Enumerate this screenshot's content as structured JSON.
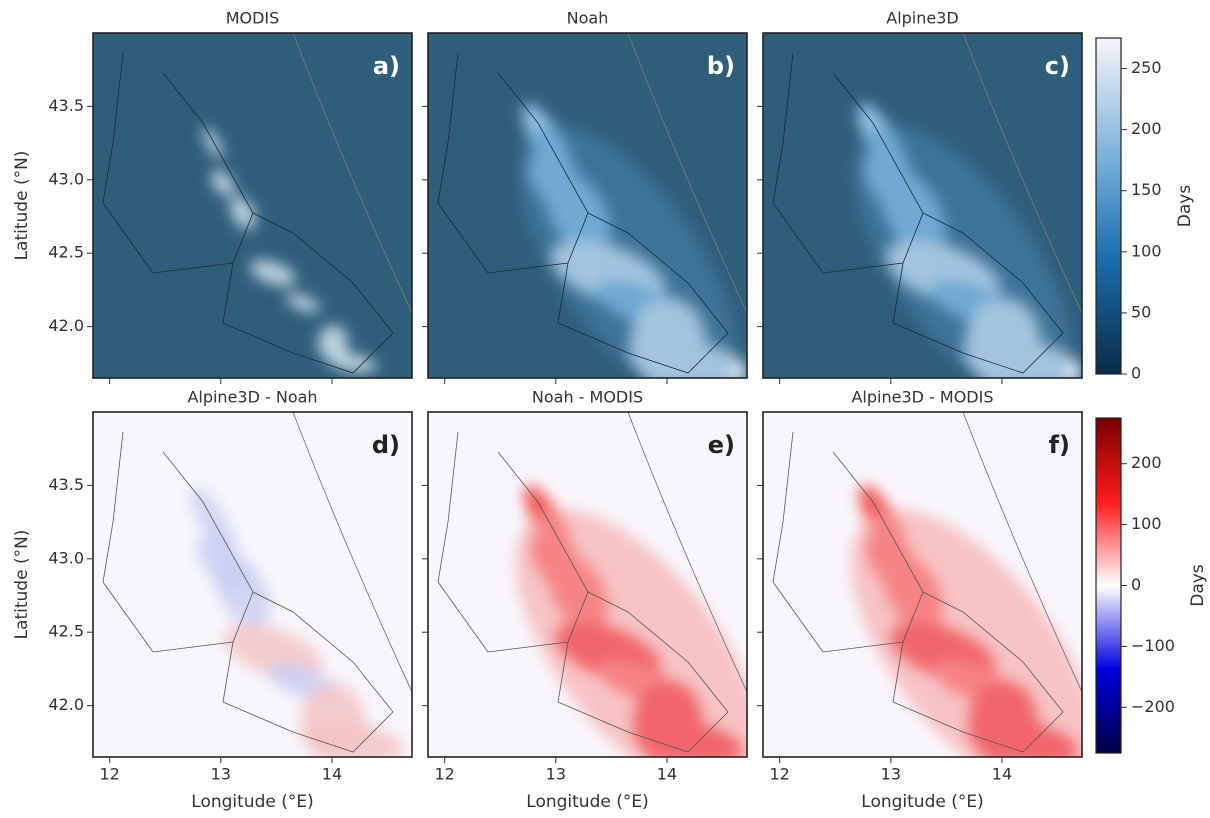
{
  "panels": [
    {
      "title": "MODIS",
      "label": "a)"
    },
    {
      "title": "Noah",
      "label": "b)"
    },
    {
      "title": "Alpine3D",
      "label": "c)"
    },
    {
      "title": "Alpine3D - Noah",
      "label": "d)"
    },
    {
      "title": "Noah - MODIS",
      "label": "e)"
    },
    {
      "title": "Alpine3D - MODIS",
      "label": "f)"
    }
  ],
  "xlabel": "Longitude (°E)",
  "ylabel": "Latitude (°N)",
  "xlim": [
    11.85,
    14.72
  ],
  "ylim": [
    41.65,
    44.0
  ],
  "xticks": [
    12,
    13,
    14
  ],
  "yticks": [
    {
      "value": 42,
      "label": "42.0"
    },
    42.5,
    {
      "value": 43,
      "label": "43.0"
    },
    43.5
  ],
  "colorbars": [
    {
      "label": "Days",
      "lim": [
        0,
        275
      ],
      "ticks": [
        0,
        50,
        100,
        150,
        200,
        250
      ]
    },
    {
      "label": "Days",
      "lim": [
        -275,
        275
      ],
      "ticks": [
        {
          "value": -200,
          "label": "−200"
        },
        {
          "value": -100,
          "label": "−100"
        },
        0,
        100,
        200
      ]
    }
  ]
}
